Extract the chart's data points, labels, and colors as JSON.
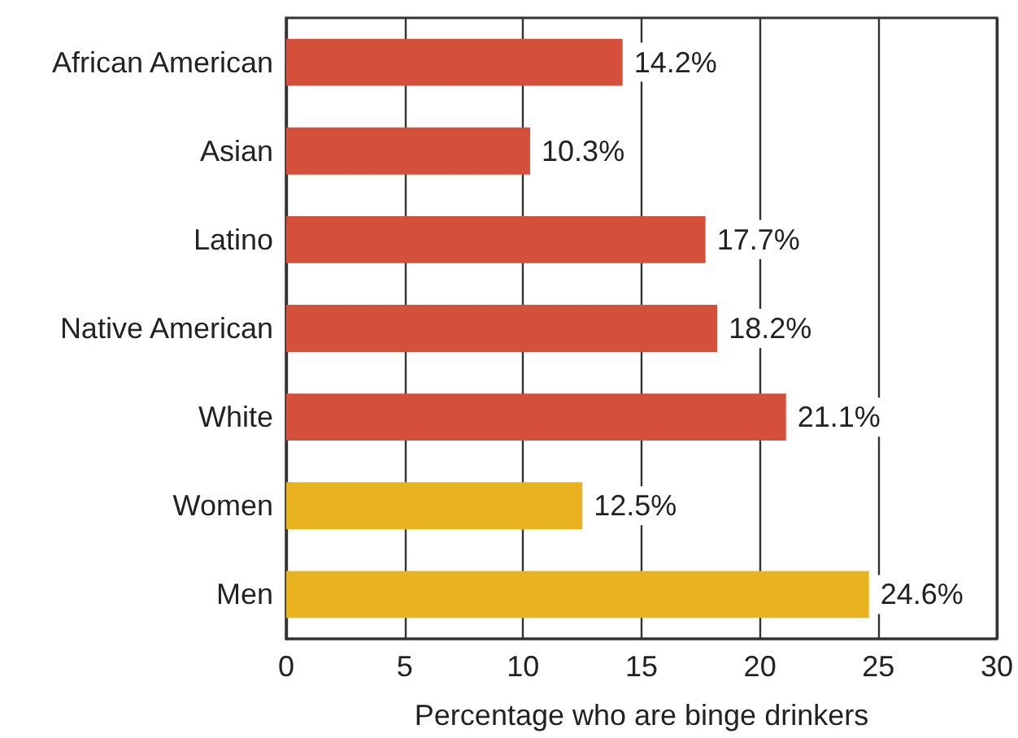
{
  "chart_data": {
    "type": "bar",
    "orientation": "horizontal",
    "xlabel": "Percentage who are binge drinkers",
    "categories": [
      "African American",
      "Asian",
      "Latino",
      "Native American",
      "White",
      "Women",
      "Men"
    ],
    "values": [
      14.2,
      10.3,
      17.7,
      18.2,
      21.1,
      12.5,
      24.6
    ],
    "colors": [
      "#d4503a",
      "#d4503a",
      "#d4503a",
      "#d4503a",
      "#d4503a",
      "#e8b31f",
      "#e8b31f"
    ],
    "value_labels": [
      "14.2%",
      "10.3%",
      "17.7%",
      "18.2%",
      "21.1%",
      "12.5%",
      "24.6%"
    ],
    "xlim": [
      0,
      30
    ],
    "xticks": [
      0,
      5,
      10,
      15,
      20,
      25,
      30
    ],
    "grid": "x"
  }
}
